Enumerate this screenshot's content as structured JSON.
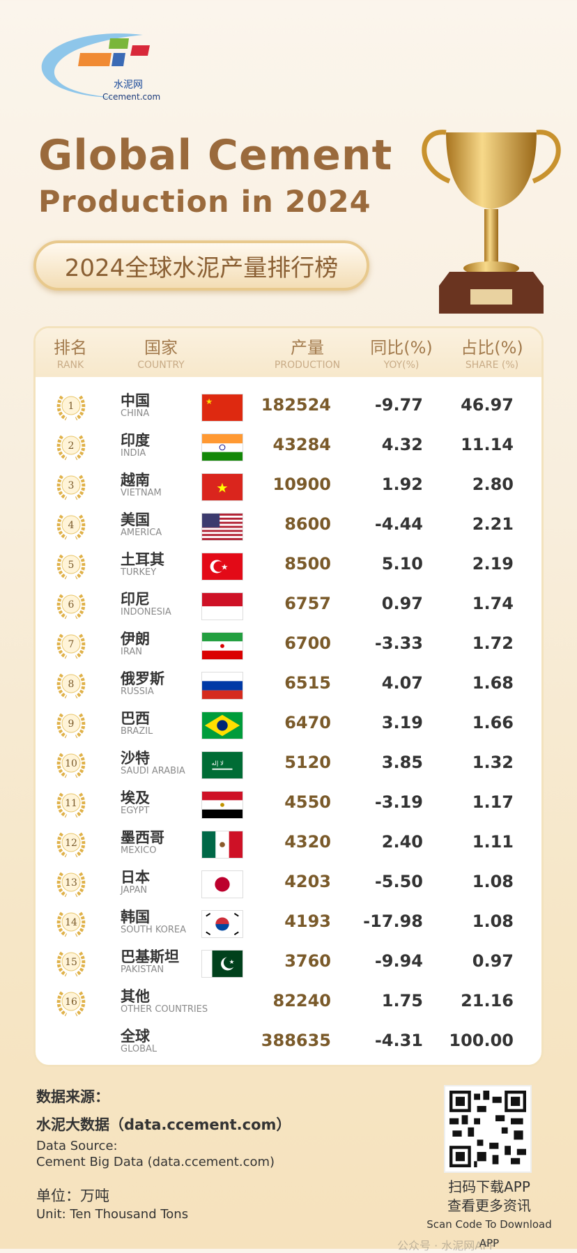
{
  "logo": {
    "zh": "水泥网",
    "en": "Ccement.com"
  },
  "title": {
    "line1": "Global Cement",
    "line2": "Production in 2024",
    "subtitle": "2024全球水泥产量排行榜"
  },
  "table": {
    "headers": [
      {
        "zh": "排名",
        "en": "RANK"
      },
      {
        "zh": "国家",
        "en": "COUNTRY"
      },
      {
        "zh": "产量",
        "en": "PRODUCTION"
      },
      {
        "zh": "同比(%)",
        "en": "YOY(%)"
      },
      {
        "zh": "占比(%)",
        "en": "SHARE (%)"
      }
    ],
    "rows": [
      {
        "rank": "1",
        "zh": "中国",
        "en": "CHINA",
        "flag": "cn",
        "production": "182524",
        "yoy": "-9.77",
        "share": "46.97"
      },
      {
        "rank": "2",
        "zh": "印度",
        "en": "INDIA",
        "flag": "in",
        "production": "43284",
        "yoy": "4.32",
        "share": "11.14"
      },
      {
        "rank": "3",
        "zh": "越南",
        "en": "VIETNAM",
        "flag": "vn",
        "production": "10900",
        "yoy": "1.92",
        "share": "2.80"
      },
      {
        "rank": "4",
        "zh": "美国",
        "en": "AMERICA",
        "flag": "us",
        "production": "8600",
        "yoy": "-4.44",
        "share": "2.21"
      },
      {
        "rank": "5",
        "zh": "土耳其",
        "en": "TURKEY",
        "flag": "tr",
        "production": "8500",
        "yoy": "5.10",
        "share": "2.19"
      },
      {
        "rank": "6",
        "zh": "印尼",
        "en": "INDONESIA",
        "flag": "id",
        "production": "6757",
        "yoy": "0.97",
        "share": "1.74"
      },
      {
        "rank": "7",
        "zh": "伊朗",
        "en": "IRAN",
        "flag": "ir",
        "production": "6700",
        "yoy": "-3.33",
        "share": "1.72"
      },
      {
        "rank": "8",
        "zh": "俄罗斯",
        "en": "RUSSIA",
        "flag": "ru",
        "production": "6515",
        "yoy": "4.07",
        "share": "1.68"
      },
      {
        "rank": "9",
        "zh": "巴西",
        "en": "BRAZIL",
        "flag": "br",
        "production": "6470",
        "yoy": "3.19",
        "share": "1.66"
      },
      {
        "rank": "10",
        "zh": "沙特",
        "en": "SAUDI ARABIA",
        "flag": "sa",
        "production": "5120",
        "yoy": "3.85",
        "share": "1.32"
      },
      {
        "rank": "11",
        "zh": "埃及",
        "en": "EGYPT",
        "flag": "eg",
        "production": "4550",
        "yoy": "-3.19",
        "share": "1.17"
      },
      {
        "rank": "12",
        "zh": "墨西哥",
        "en": "MEXICO",
        "flag": "mx",
        "production": "4320",
        "yoy": "2.40",
        "share": "1.11"
      },
      {
        "rank": "13",
        "zh": "日本",
        "en": "JAPAN",
        "flag": "jp",
        "production": "4203",
        "yoy": "-5.50",
        "share": "1.08"
      },
      {
        "rank": "14",
        "zh": "韩国",
        "en": "SOUTH KOREA",
        "flag": "kr",
        "production": "4193",
        "yoy": "-17.98",
        "share": "1.08"
      },
      {
        "rank": "15",
        "zh": "巴基斯坦",
        "en": "PAKISTAN",
        "flag": "pk",
        "production": "3760",
        "yoy": "-9.94",
        "share": "0.97"
      },
      {
        "rank": "16",
        "zh": "其他",
        "en": "OTHER COUNTRIES",
        "flag": "",
        "production": "82240",
        "yoy": "1.75",
        "share": "21.16"
      },
      {
        "rank": "",
        "zh": "全球",
        "en": "GLOBAL",
        "flag": "",
        "production": "388635",
        "yoy": "-4.31",
        "share": "100.00"
      }
    ]
  },
  "source": {
    "zh_label": "数据来源：",
    "zh_value": "水泥大数据（data.ccement.com）",
    "en_label": "Data Source:",
    "en_value": "Cement Big Data (data.ccement.com)",
    "unit_zh": "单位：万吨",
    "unit_en": "Unit: Ten Thousand Tons"
  },
  "qr": {
    "line1": "扫码下载APP",
    "line2": "查看更多资讯",
    "line3": "Scan Code To Download APP"
  },
  "watermark": "公众号 · 水泥网APP",
  "colors": {
    "title": "#9a6a3c",
    "production": "#7a5a2a",
    "gold": "#e0b24a"
  }
}
